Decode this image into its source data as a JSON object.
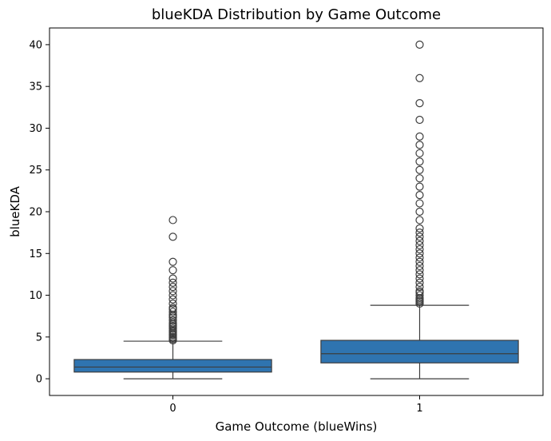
{
  "chart_data": {
    "type": "box",
    "title": "blueKDA Distribution by Game Outcome",
    "xlabel": "Game Outcome (blueWins)",
    "ylabel": "blueKDA",
    "categories": [
      "0",
      "1"
    ],
    "ylim": [
      -2,
      42
    ],
    "yticks": [
      0,
      5,
      10,
      15,
      20,
      25,
      30,
      35,
      40
    ],
    "grid": false,
    "legend": "none",
    "box_color": "#2f74b0",
    "line_color": "#3d3d3d",
    "boxes": [
      {
        "category": "0",
        "whisker_low": 0,
        "q1": 0.8,
        "median": 1.4,
        "q3": 2.3,
        "whisker_high": 4.5,
        "outliers": [
          4.6,
          4.75,
          4.9,
          5.0,
          5.2,
          5.33,
          5.5,
          5.67,
          5.75,
          6.0,
          6.2,
          6.33,
          6.5,
          6.67,
          7.0,
          7.33,
          7.5,
          7.67,
          8.0,
          8.33,
          8.5,
          9.0,
          9.5,
          10.0,
          10.5,
          11.0,
          11.5,
          12.0,
          13.0,
          14.0,
          17.0,
          19.0
        ]
      },
      {
        "category": "1",
        "whisker_low": 0,
        "q1": 1.9,
        "median": 3.0,
        "q3": 4.6,
        "whisker_high": 8.8,
        "outliers": [
          9.0,
          9.2,
          9.33,
          9.5,
          9.67,
          10.0,
          10.33,
          10.5,
          11.0,
          11.5,
          12.0,
          12.5,
          13.0,
          13.5,
          14.0,
          14.5,
          15.0,
          15.5,
          16.0,
          16.5,
          17.0,
          17.5,
          18.0,
          19.0,
          20.0,
          21.0,
          22.0,
          23.0,
          24.0,
          25.0,
          26.0,
          27.0,
          28.0,
          29.0,
          31.0,
          33.0,
          36.0,
          40.0
        ]
      }
    ]
  }
}
